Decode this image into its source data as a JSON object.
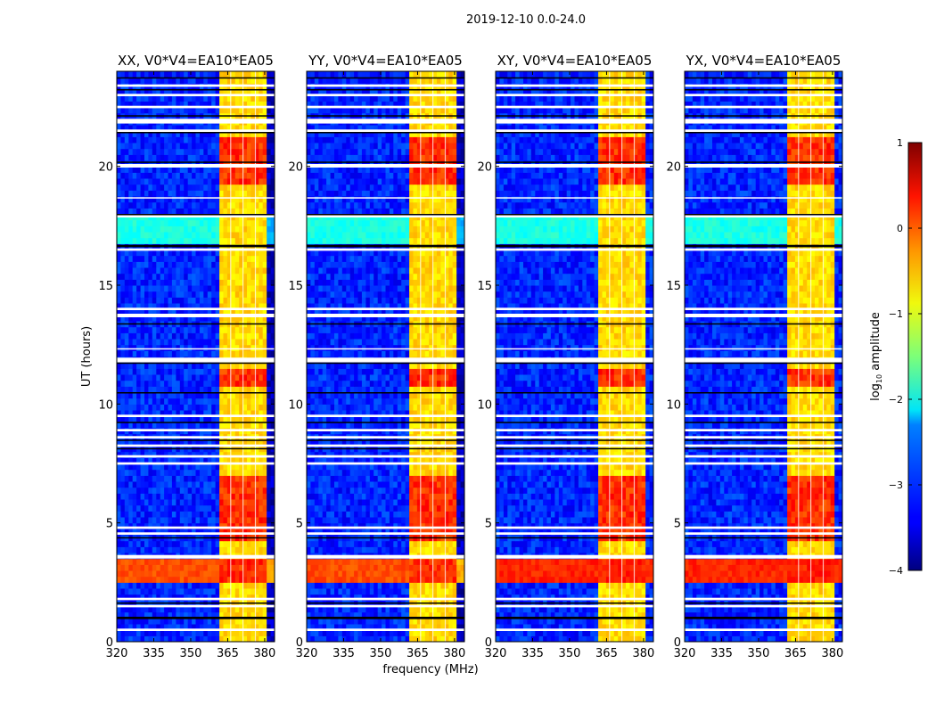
{
  "chart_data": {
    "type": "heatmap",
    "title": "2019-12-10 0.0-24.0",
    "xlabel": "frequency (MHz)",
    "ylabel": "UT (hours)",
    "xlim": [
      320,
      384
    ],
    "ylim": [
      0,
      24
    ],
    "xticks": [
      "320",
      "335",
      "350",
      "365",
      "380"
    ],
    "xtick_values": [
      320,
      335,
      350,
      365,
      380
    ],
    "yticks": [
      "0",
      "5",
      "10",
      "15",
      "20"
    ],
    "ytick_values": [
      0,
      5,
      10,
      15,
      20
    ],
    "panels": [
      {
        "title": "XX, V0*V4=EA10*EA05"
      },
      {
        "title": "YY, V0*V4=EA10*EA05"
      },
      {
        "title": "XY, V0*V4=EA10*EA05"
      },
      {
        "title": "YX, V0*V4=EA10*EA05"
      }
    ],
    "colorbar": {
      "label": "log10 amplitude",
      "label_main": "log",
      "label_sub": "10",
      "label_rest": " amplitude",
      "range": [
        -4,
        1
      ],
      "ticks": [
        "1",
        "0",
        "−1",
        "−2",
        "−3",
        "−4"
      ],
      "tick_values": [
        1,
        0,
        -1,
        -2,
        -3,
        -4
      ],
      "colormap": "jet"
    },
    "model": {
      "background_log_amp": -3.2,
      "rfi_band_mhz": [
        362,
        380
      ],
      "rfi_band_log_amp": -0.7,
      "rfi_subband_edges_mhz": [
        366,
        371,
        376
      ],
      "strong_rows_hours": [
        [
          2.6,
          3.4
        ],
        [
          10.8,
          11.6
        ],
        [
          19.3,
          21.3
        ],
        [
          4.2,
          6.9
        ]
      ],
      "strong_rows_log_amp": 0.2,
      "cyan_rows_hours": [
        [
          16.7,
          17.9
        ]
      ],
      "flagged_white_hours": [
        [
          0.45,
          0.55
        ],
        [
          1.45,
          1.55
        ],
        [
          1.75,
          1.85
        ],
        [
          3.5,
          3.65
        ],
        [
          4.5,
          4.6
        ],
        [
          4.75,
          4.85
        ],
        [
          7.45,
          7.55
        ],
        [
          7.75,
          7.85
        ],
        [
          8.2,
          8.3
        ],
        [
          8.55,
          8.65
        ],
        [
          8.85,
          8.95
        ],
        [
          9.45,
          9.55
        ],
        [
          11.75,
          11.95
        ],
        [
          12.3,
          12.35
        ],
        [
          13.65,
          13.8
        ],
        [
          13.95,
          14.05
        ],
        [
          16.45,
          16.55
        ],
        [
          17.85,
          18.0
        ],
        [
          18.65,
          18.7
        ],
        [
          19.95,
          20.1
        ],
        [
          21.45,
          21.55
        ],
        [
          21.8,
          22.0
        ],
        [
          22.45,
          22.55
        ],
        [
          22.95,
          23.05
        ],
        [
          23.35,
          23.45
        ]
      ],
      "flagged_black_hours": [
        [
          0.95,
          1.05
        ],
        [
          1.6,
          1.65
        ],
        [
          4.35,
          4.4
        ],
        [
          8.1,
          8.15
        ],
        [
          8.45,
          8.5
        ],
        [
          9.2,
          9.25
        ],
        [
          10.45,
          10.5
        ],
        [
          11.7,
          11.75
        ],
        [
          13.35,
          13.4
        ],
        [
          16.6,
          16.7
        ],
        [
          17.95,
          18.0
        ],
        [
          20.15,
          20.2
        ],
        [
          21.4,
          21.45
        ],
        [
          22.1,
          22.15
        ],
        [
          23.2,
          23.25
        ],
        [
          23.7,
          23.75
        ]
      ]
    }
  }
}
